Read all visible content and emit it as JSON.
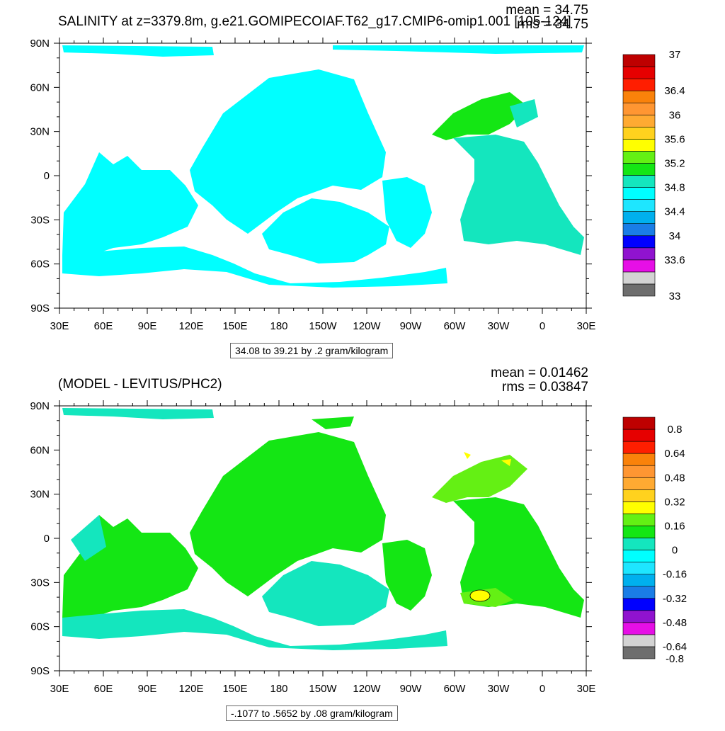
{
  "chart_data": [
    {
      "type": "heatmap",
      "title": "SALINITY at z=3379.8m, g.e21.GOMIPECOIAF.T62_g17.CMIP6-omip1.001 [105-124]",
      "stats": {
        "mean": "mean = 34.75",
        "rms": "rms = 34.75"
      },
      "info": "34.08 to 39.21 by .2 gram/kilogram",
      "x_ticks": [
        "30E",
        "60E",
        "90E",
        "120E",
        "150E",
        "180",
        "150W",
        "120W",
        "90W",
        "60W",
        "30W",
        "0",
        "30E"
      ],
      "y_ticks": [
        "90N",
        "60N",
        "30N",
        "0",
        "30S",
        "60S",
        "90S"
      ],
      "colorbar": {
        "colors": [
          "#6e6e6e",
          "#d3d3d3",
          "#e60fe6",
          "#9013cf",
          "#0000ff",
          "#1a7de6",
          "#00b0ee",
          "#1ee6ff",
          "#00ffff",
          "#14e6be",
          "#14e614",
          "#64f014",
          "#ffff00",
          "#ffd21e",
          "#ffaa32",
          "#ff9632",
          "#fa820a",
          "#ff1e00",
          "#e60000",
          "#be0000"
        ],
        "labels": [
          "33",
          "33.6",
          "34",
          "34.4",
          "34.8",
          "35.2",
          "35.6",
          "36",
          "36.4",
          "37"
        ],
        "label_boundaries": [
          0,
          3,
          5,
          7,
          9,
          11,
          13,
          15,
          17,
          20
        ]
      }
    },
    {
      "type": "heatmap",
      "title": "(MODEL - LEVITUS/PHC2)",
      "stats": {
        "mean": "mean = 0.01462",
        "rms": "rms = 0.03847"
      },
      "info": "-.1077 to .5652 by .08 gram/kilogram",
      "x_ticks": [
        "30E",
        "60E",
        "90E",
        "120E",
        "150E",
        "180",
        "150W",
        "120W",
        "90W",
        "60W",
        "30W",
        "0",
        "30E"
      ],
      "y_ticks": [
        "90N",
        "60N",
        "30N",
        "0",
        "30S",
        "60S",
        "90S"
      ],
      "colorbar": {
        "colors": [
          "#6e6e6e",
          "#d3d3d3",
          "#e60fe6",
          "#9013cf",
          "#0000ff",
          "#1a7de6",
          "#00b0ee",
          "#1ee6ff",
          "#00ffff",
          "#14e6be",
          "#14e614",
          "#64f014",
          "#ffff00",
          "#ffd21e",
          "#ffaa32",
          "#ff9632",
          "#fa820a",
          "#ff1e00",
          "#e60000",
          "#be0000"
        ],
        "labels": [
          "-0.8",
          "-0.64",
          "-0.48",
          "-0.32",
          "-0.16",
          "0",
          "0.16",
          "0.32",
          "0.48",
          "0.64",
          "0.8"
        ],
        "label_boundaries": [
          0,
          1,
          3,
          5,
          7,
          9,
          11,
          13,
          15,
          17,
          19
        ]
      }
    }
  ]
}
